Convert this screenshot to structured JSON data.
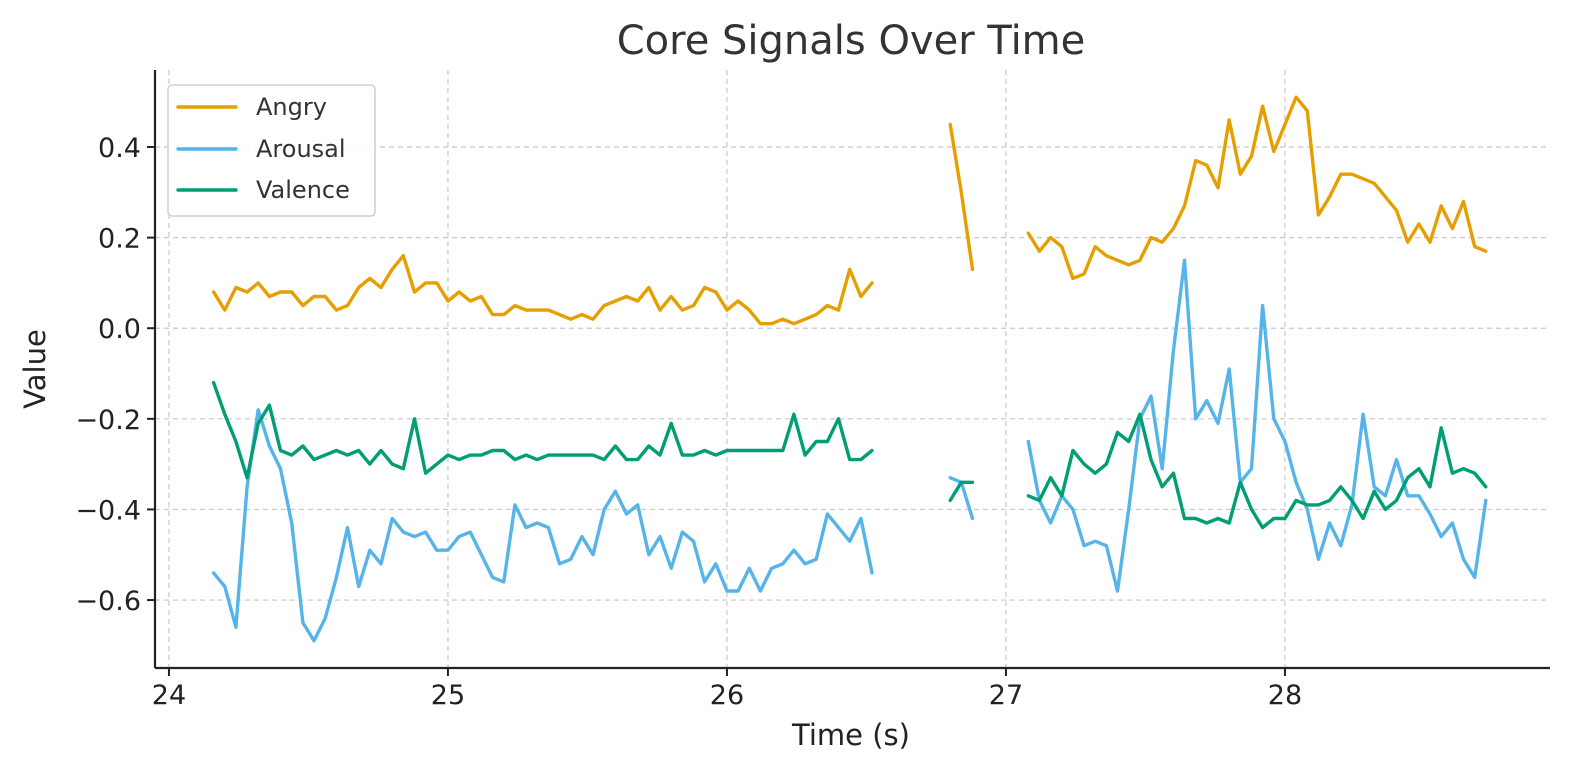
{
  "chart_data": {
    "type": "line",
    "title": "Core Signals Over Time",
    "xlabel": "Time (s)",
    "ylabel": "Value",
    "xlim": [
      23.95,
      28.95
    ],
    "ylim": [
      -0.75,
      0.57
    ],
    "xticks": [
      24,
      25,
      26,
      27,
      28
    ],
    "xtick_labels": [
      "24",
      "25",
      "26",
      "27",
      "28"
    ],
    "yticks": [
      0.4,
      0.2,
      0.0,
      -0.2,
      -0.4,
      -0.6
    ],
    "ytick_labels": [
      "0.4",
      "0.2",
      "0.0",
      "−0.2",
      "−0.4",
      "−0.6"
    ],
    "grid": true,
    "legend_position": "top-left",
    "series": [
      {
        "name": "Angry",
        "color": "#E69F00",
        "segments": [
          {
            "x": [
              24.16,
              24.2,
              24.24,
              24.28,
              24.32,
              24.36,
              24.4,
              24.44,
              24.48,
              24.52,
              24.56,
              24.6,
              24.64,
              24.68,
              24.72,
              24.76,
              24.8,
              24.84,
              24.88,
              24.92,
              24.96,
              25.0,
              25.04,
              25.08,
              25.12,
              25.16,
              25.2,
              25.24,
              25.28,
              25.32,
              25.36,
              25.4,
              25.44,
              25.48,
              25.52,
              25.56,
              25.6,
              25.64,
              25.68,
              25.72,
              25.76,
              25.8,
              25.84,
              25.88,
              25.92,
              25.96,
              26.0,
              26.04,
              26.08,
              26.12,
              26.16,
              26.2,
              26.24,
              26.28,
              26.32,
              26.36,
              26.4,
              26.44,
              26.48,
              26.52
            ],
            "y": [
              0.08,
              0.04,
              0.09,
              0.08,
              0.1,
              0.07,
              0.08,
              0.08,
              0.05,
              0.07,
              0.07,
              0.04,
              0.05,
              0.09,
              0.11,
              0.09,
              0.13,
              0.16,
              0.08,
              0.1,
              0.1,
              0.06,
              0.08,
              0.06,
              0.07,
              0.03,
              0.03,
              0.05,
              0.04,
              0.04,
              0.04,
              0.03,
              0.02,
              0.03,
              0.02,
              0.05,
              0.06,
              0.07,
              0.06,
              0.09,
              0.04,
              0.07,
              0.04,
              0.05,
              0.09,
              0.08,
              0.04,
              0.06,
              0.04,
              0.01,
              0.01,
              0.02,
              0.01,
              0.02,
              0.03,
              0.05,
              0.04,
              0.13,
              0.07,
              0.1
            ]
          },
          {
            "x": [
              26.8,
              26.84,
              26.88
            ],
            "y": [
              0.45,
              0.3,
              0.13
            ]
          },
          {
            "x": [
              27.08,
              27.12,
              27.16,
              27.2,
              27.24,
              27.28,
              27.32,
              27.36,
              27.4,
              27.44,
              27.48,
              27.52,
              27.56,
              27.6,
              27.64,
              27.68,
              27.72,
              27.76,
              27.8,
              27.84,
              27.88,
              27.92,
              27.96,
              28.0,
              28.04,
              28.08,
              28.12,
              28.16,
              28.2,
              28.24,
              28.28,
              28.32,
              28.36,
              28.4,
              28.44,
              28.48,
              28.52,
              28.56,
              28.6,
              28.64,
              28.68,
              28.72
            ],
            "y": [
              0.21,
              0.17,
              0.2,
              0.18,
              0.11,
              0.12,
              0.18,
              0.16,
              0.15,
              0.14,
              0.15,
              0.2,
              0.19,
              0.22,
              0.27,
              0.37,
              0.36,
              0.31,
              0.46,
              0.34,
              0.38,
              0.49,
              0.39,
              0.45,
              0.51,
              0.48,
              0.25,
              0.29,
              0.34,
              0.34,
              0.33,
              0.32,
              0.29,
              0.26,
              0.19,
              0.23,
              0.19,
              0.27,
              0.22,
              0.28,
              0.18,
              0.17
            ]
          }
        ]
      },
      {
        "name": "Arousal",
        "color": "#56B4E9",
        "segments": [
          {
            "x": [
              24.16,
              24.2,
              24.24,
              24.28,
              24.32,
              24.36,
              24.4,
              24.44,
              24.48,
              24.52,
              24.56,
              24.6,
              24.64,
              24.68,
              24.72,
              24.76,
              24.8,
              24.84,
              24.88,
              24.92,
              24.96,
              25.0,
              25.04,
              25.08,
              25.12,
              25.16,
              25.2,
              25.24,
              25.28,
              25.32,
              25.36,
              25.4,
              25.44,
              25.48,
              25.52,
              25.56,
              25.6,
              25.64,
              25.68,
              25.72,
              25.76,
              25.8,
              25.84,
              25.88,
              25.92,
              25.96,
              26.0,
              26.04,
              26.08,
              26.12,
              26.16,
              26.2,
              26.24,
              26.28,
              26.32,
              26.36,
              26.4,
              26.44,
              26.48,
              26.52
            ],
            "y": [
              -0.54,
              -0.57,
              -0.66,
              -0.35,
              -0.18,
              -0.26,
              -0.31,
              -0.43,
              -0.65,
              -0.69,
              -0.64,
              -0.55,
              -0.44,
              -0.57,
              -0.49,
              -0.52,
              -0.42,
              -0.45,
              -0.46,
              -0.45,
              -0.49,
              -0.49,
              -0.46,
              -0.45,
              -0.5,
              -0.55,
              -0.56,
              -0.39,
              -0.44,
              -0.43,
              -0.44,
              -0.52,
              -0.51,
              -0.46,
              -0.5,
              -0.4,
              -0.36,
              -0.41,
              -0.39,
              -0.5,
              -0.46,
              -0.53,
              -0.45,
              -0.47,
              -0.56,
              -0.52,
              -0.58,
              -0.58,
              -0.53,
              -0.58,
              -0.53,
              -0.52,
              -0.49,
              -0.52,
              -0.51,
              -0.41,
              -0.44,
              -0.47,
              -0.42,
              -0.54
            ]
          },
          {
            "x": [
              26.8,
              26.84,
              26.88
            ],
            "y": [
              -0.33,
              -0.34,
              -0.42
            ]
          },
          {
            "x": [
              27.08,
              27.12,
              27.16,
              27.2,
              27.24,
              27.28,
              27.32,
              27.36,
              27.4,
              27.44,
              27.48,
              27.52,
              27.56,
              27.6,
              27.64,
              27.68,
              27.72,
              27.76,
              27.8,
              27.84,
              27.88,
              27.92,
              27.96,
              28.0,
              28.04,
              28.08,
              28.12,
              28.16,
              28.2,
              28.24,
              28.28,
              28.32,
              28.36,
              28.4,
              28.44,
              28.48,
              28.52,
              28.56,
              28.6,
              28.64,
              28.68,
              28.72
            ],
            "y": [
              -0.25,
              -0.38,
              -0.43,
              -0.37,
              -0.4,
              -0.48,
              -0.47,
              -0.48,
              -0.58,
              -0.4,
              -0.2,
              -0.15,
              -0.31,
              -0.05,
              0.15,
              -0.2,
              -0.16,
              -0.21,
              -0.09,
              -0.34,
              -0.31,
              0.05,
              -0.2,
              -0.25,
              -0.34,
              -0.4,
              -0.51,
              -0.43,
              -0.48,
              -0.39,
              -0.19,
              -0.35,
              -0.37,
              -0.29,
              -0.37,
              -0.37,
              -0.41,
              -0.46,
              -0.43,
              -0.51,
              -0.55,
              -0.38
            ]
          }
        ]
      },
      {
        "name": "Valence",
        "color": "#009E73",
        "segments": [
          {
            "x": [
              24.16,
              24.2,
              24.24,
              24.28,
              24.32,
              24.36,
              24.4,
              24.44,
              24.48,
              24.52,
              24.56,
              24.6,
              24.64,
              24.68,
              24.72,
              24.76,
              24.8,
              24.84,
              24.88,
              24.92,
              24.96,
              25.0,
              25.04,
              25.08,
              25.12,
              25.16,
              25.2,
              25.24,
              25.28,
              25.32,
              25.36,
              25.4,
              25.44,
              25.48,
              25.52,
              25.56,
              25.6,
              25.64,
              25.68,
              25.72,
              25.76,
              25.8,
              25.84,
              25.88,
              25.92,
              25.96,
              26.0,
              26.04,
              26.08,
              26.12,
              26.16,
              26.2,
              26.24,
              26.28,
              26.32,
              26.36,
              26.4,
              26.44,
              26.48,
              26.52
            ],
            "y": [
              -0.12,
              -0.19,
              -0.25,
              -0.33,
              -0.21,
              -0.17,
              -0.27,
              -0.28,
              -0.26,
              -0.29,
              -0.28,
              -0.27,
              -0.28,
              -0.27,
              -0.3,
              -0.27,
              -0.3,
              -0.31,
              -0.2,
              -0.32,
              -0.3,
              -0.28,
              -0.29,
              -0.28,
              -0.28,
              -0.27,
              -0.27,
              -0.29,
              -0.28,
              -0.29,
              -0.28,
              -0.28,
              -0.28,
              -0.28,
              -0.28,
              -0.29,
              -0.26,
              -0.29,
              -0.29,
              -0.26,
              -0.28,
              -0.21,
              -0.28,
              -0.28,
              -0.27,
              -0.28,
              -0.27,
              -0.27,
              -0.27,
              -0.27,
              -0.27,
              -0.27,
              -0.19,
              -0.28,
              -0.25,
              -0.25,
              -0.2,
              -0.29,
              -0.29,
              -0.27
            ]
          },
          {
            "x": [
              26.8,
              26.84,
              26.88
            ],
            "y": [
              -0.38,
              -0.34,
              -0.34
            ]
          },
          {
            "x": [
              27.08,
              27.12,
              27.16,
              27.2,
              27.24,
              27.28,
              27.32,
              27.36,
              27.4,
              27.44,
              27.48,
              27.52,
              27.56,
              27.6,
              27.64,
              27.68,
              27.72,
              27.76,
              27.8,
              27.84,
              27.88,
              27.92,
              27.96,
              28.0,
              28.04,
              28.08,
              28.12,
              28.16,
              28.2,
              28.24,
              28.28,
              28.32,
              28.36,
              28.4,
              28.44,
              28.48,
              28.52,
              28.56,
              28.6,
              28.64,
              28.68,
              28.72
            ],
            "y": [
              -0.37,
              -0.38,
              -0.33,
              -0.37,
              -0.27,
              -0.3,
              -0.32,
              -0.3,
              -0.23,
              -0.25,
              -0.19,
              -0.29,
              -0.35,
              -0.32,
              -0.42,
              -0.42,
              -0.43,
              -0.42,
              -0.43,
              -0.34,
              -0.4,
              -0.44,
              -0.42,
              -0.42,
              -0.38,
              -0.39,
              -0.39,
              -0.38,
              -0.35,
              -0.38,
              -0.42,
              -0.36,
              -0.4,
              -0.38,
              -0.33,
              -0.31,
              -0.35,
              -0.22,
              -0.32,
              -0.31,
              -0.32,
              -0.35
            ]
          }
        ]
      }
    ]
  }
}
